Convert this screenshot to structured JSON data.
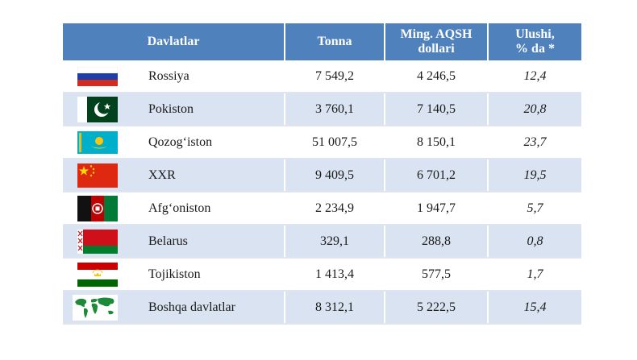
{
  "header": {
    "col_country": "Davlatlar",
    "col_tonnes": "Tonna",
    "col_usd_line1": "Ming. AQSH",
    "col_usd_line2": "dollari",
    "col_share_line1": "Ulushi,",
    "col_share_line2": "% da *"
  },
  "rows": [
    {
      "country": "Rossiya",
      "tonnes": "7 549,2",
      "usd": "4 246,5",
      "share": "12,4",
      "flag_icon": "russia-flag-icon"
    },
    {
      "country": "Pokiston",
      "tonnes": "3 760,1",
      "usd": "7 140,5",
      "share": "20,8",
      "flag_icon": "pakistan-flag-icon"
    },
    {
      "country": "Qozog‘iston",
      "tonnes": "51 007,5",
      "usd": "8 150,1",
      "share": "23,7",
      "flag_icon": "kazakhstan-flag-icon"
    },
    {
      "country": "XXR",
      "tonnes": "9 409,5",
      "usd": "6 701,2",
      "share": "19,5",
      "flag_icon": "china-flag-icon"
    },
    {
      "country": "Afg‘oniston",
      "tonnes": "2 234,9",
      "usd": "1 947,7",
      "share": "5,7",
      "flag_icon": "afghanistan-flag-icon"
    },
    {
      "country": "Belarus",
      "tonnes": "329,1",
      "usd": "288,8",
      "share": "0,8",
      "flag_icon": "belarus-flag-icon"
    },
    {
      "country": "Tojikiston",
      "tonnes": "1 413,4",
      "usd": "577,5",
      "share": "1,7",
      "flag_icon": "tajikistan-flag-icon"
    },
    {
      "country": "Boshqa davlatlar",
      "tonnes": "8 312,1",
      "usd": "5 222,5",
      "share": "15,4",
      "flag_icon": "world-map-icon"
    }
  ],
  "colors": {
    "header_bg": "#4f81bd",
    "alt_row_bg": "#dae3f1"
  }
}
